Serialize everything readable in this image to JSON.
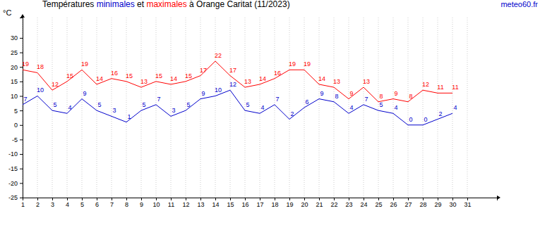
{
  "chart_data": {
    "type": "line",
    "title": "Températures minimales et maximales à Orange Caritat (11/2023)",
    "source": "meteo60.fr",
    "y_label": "°C",
    "x": [
      1,
      2,
      3,
      4,
      5,
      6,
      7,
      8,
      9,
      10,
      11,
      12,
      13,
      14,
      15,
      16,
      17,
      18,
      19,
      20,
      21,
      22,
      23,
      24,
      25,
      26,
      27,
      28,
      29,
      30
    ],
    "series": [
      {
        "name": "minimales",
        "color": "#0000cc",
        "values": [
          7,
          10,
          5,
          4,
          9,
          5,
          3,
          1,
          5,
          7,
          3,
          5,
          9,
          10,
          12,
          5,
          4,
          7,
          2,
          6,
          9,
          8,
          4,
          7,
          5,
          4,
          0,
          0,
          2,
          4
        ]
      },
      {
        "name": "maximales",
        "color": "#ff0000",
        "values": [
          19,
          18,
          12,
          15,
          19,
          14,
          16,
          15,
          13,
          15,
          14,
          15,
          17,
          22,
          17,
          13,
          14,
          16,
          19,
          19,
          14,
          13,
          9,
          13,
          8,
          9,
          8,
          12,
          11,
          11
        ]
      }
    ],
    "xlim": [
      1,
      33
    ],
    "xticks": [
      1,
      2,
      3,
      4,
      5,
      6,
      7,
      8,
      9,
      10,
      11,
      12,
      13,
      14,
      15,
      16,
      17,
      18,
      19,
      20,
      21,
      22,
      23,
      24,
      25,
      26,
      27,
      28,
      29,
      30,
      31
    ],
    "ylim": [
      -25,
      37
    ],
    "yticks": [
      -25,
      -20,
      -15,
      -10,
      -5,
      0,
      5,
      10,
      15,
      20,
      25,
      30
    ],
    "grid": true,
    "data_labels": true
  }
}
